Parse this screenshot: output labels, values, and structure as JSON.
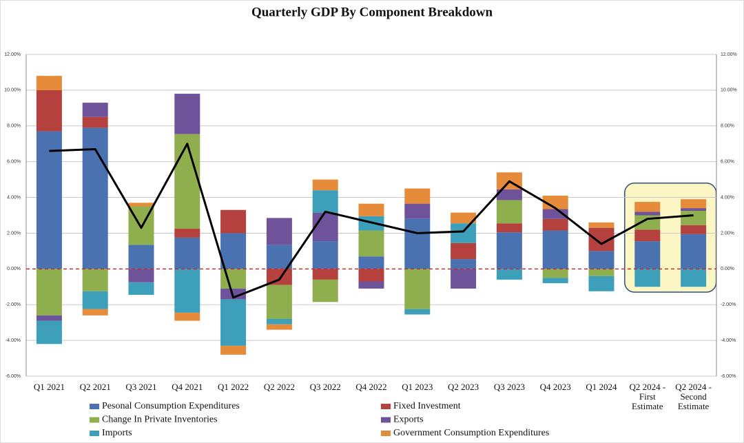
{
  "chart_data": {
    "type": "stacked_bar_line",
    "title": "Quarterly GDP By Component Breakdown",
    "categories": [
      "Q1 2021",
      "Q2 2021",
      "Q3 2021",
      "Q4 2021",
      "Q1 2022",
      "Q2 2022",
      "Q3 2022",
      "Q4 2022",
      "Q1 2023",
      "Q2 2023",
      "Q3 2023",
      "Q4 2023",
      "Q1 2024",
      "Q2 2024 - First Estimate",
      "Q2 2024 - Second Estimate"
    ],
    "series": [
      {
        "name": "Pesonal Consumption Expenditures",
        "color": "#4a72b0",
        "values": [
          7.7,
          7.9,
          1.35,
          1.75,
          2.0,
          1.35,
          1.55,
          0.7,
          2.8,
          0.55,
          2.05,
          2.15,
          1.0,
          1.55,
          1.95
        ]
      },
      {
        "name": "Fixed Investment",
        "color": "#b5413f",
        "values": [
          2.3,
          0.6,
          0,
          0.5,
          1.3,
          -0.9,
          -0.6,
          -0.7,
          0,
          0.9,
          0.5,
          0.65,
          1.3,
          0.65,
          0.5
        ]
      },
      {
        "name": "Change In Private Inventories",
        "color": "#8fae4e",
        "values": [
          -2.6,
          -1.25,
          2.15,
          5.3,
          -1.1,
          -1.9,
          -1.25,
          1.45,
          -2.25,
          0,
          1.3,
          -0.5,
          -0.4,
          0.8,
          0.8
        ]
      },
      {
        "name": "Exports",
        "color": "#6f539a",
        "values": [
          -0.3,
          0.8,
          -0.75,
          2.25,
          -0.6,
          1.5,
          1.6,
          -0.4,
          0.85,
          -1.1,
          0.6,
          0.55,
          0,
          0.2,
          0.15
        ]
      },
      {
        "name": "Imports",
        "color": "#3d9fba",
        "values": [
          -1.3,
          -1.0,
          -0.7,
          -2.45,
          -2.6,
          -0.3,
          1.25,
          0.8,
          -0.3,
          1.1,
          -0.6,
          -0.3,
          -0.85,
          -1.0,
          -1.0
        ]
      },
      {
        "name": "Government Consumption Expenditures",
        "color": "#e58b3a",
        "values": [
          0.8,
          -0.35,
          0.2,
          -0.45,
          -0.5,
          -0.3,
          0.6,
          0.7,
          0.85,
          0.6,
          0.95,
          0.75,
          0.3,
          0.55,
          0.5
        ]
      }
    ],
    "line": {
      "color": "#000000",
      "values": [
        6.6,
        6.7,
        2.3,
        7.0,
        -1.6,
        -0.6,
        3.2,
        2.6,
        2.0,
        2.1,
        4.9,
        3.4,
        1.4,
        2.8,
        3.0
      ]
    },
    "ylim": [
      -6,
      12
    ],
    "yticks": [
      {
        "value": -6,
        "label": "-6.00%"
      },
      {
        "value": -4,
        "label": "-4.00%"
      },
      {
        "value": -2,
        "label": "-2.00%"
      },
      {
        "value": 0,
        "label": "0.00%"
      },
      {
        "value": 2,
        "label": "2.00%"
      },
      {
        "value": 4,
        "label": "4.00%"
      },
      {
        "value": 6,
        "label": "6.00%"
      },
      {
        "value": 8,
        "label": "8.00%"
      },
      {
        "value": 10,
        "label": "10.00%"
      },
      {
        "value": 12,
        "label": "12.00%"
      }
    ],
    "grid": true
  }
}
